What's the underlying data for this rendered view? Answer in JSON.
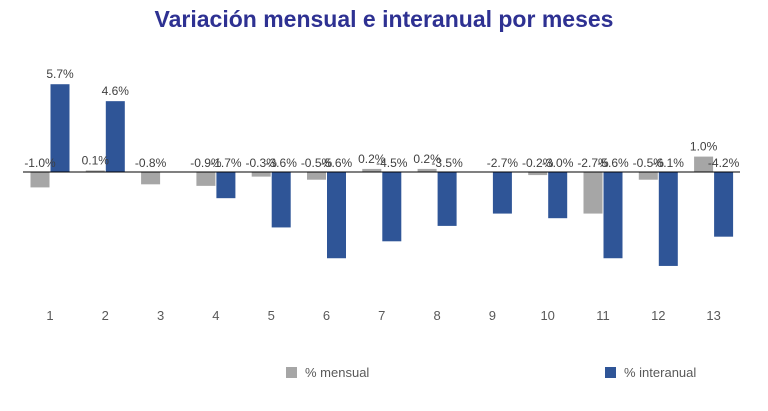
{
  "chart_data": {
    "type": "bar",
    "title": "Variación mensual e interanual por meses",
    "categories": [
      "1",
      "2",
      "3",
      "4",
      "5",
      "6",
      "7",
      "8",
      "9",
      "10",
      "11",
      "12",
      "13"
    ],
    "series": [
      {
        "name": "% mensual",
        "color": "#A6A6A6",
        "values": [
          -1.0,
          0.1,
          -0.8,
          -0.9,
          -0.3,
          -0.5,
          0.2,
          0.2,
          0.0,
          -0.2,
          -2.7,
          -0.5,
          1.0
        ],
        "labels": [
          "-1.0%",
          "0.1%",
          "-0.8%",
          "-0.9%",
          "-0.3%",
          "-0.5%",
          "0.2%",
          "0.2%",
          "",
          "-0.2%",
          "-2.7%",
          "-0.5%",
          "1.0%"
        ]
      },
      {
        "name": "% interanual",
        "color": "#2F5597",
        "values": [
          5.7,
          4.6,
          0.0,
          -1.7,
          -3.6,
          -5.6,
          -4.5,
          -3.5,
          -2.7,
          -3.0,
          -5.6,
          -6.1,
          -4.2
        ],
        "labels": [
          "5.7%",
          "4.6%",
          "",
          "-1.7%",
          "-3.6%",
          "-5.6%",
          "-4.5%",
          "-3.5%",
          "-2.7%",
          "-3.0%",
          "-5.6%",
          "-6.1%",
          "-4.2%"
        ]
      }
    ],
    "legend_position": "bottom",
    "grid": false
  }
}
